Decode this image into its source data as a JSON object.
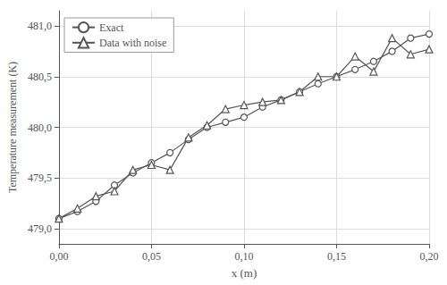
{
  "chart_data": {
    "type": "line",
    "xlabel": "x (m)",
    "ylabel": "Temperature measurement (K)",
    "x": [
      0.0,
      0.01,
      0.02,
      0.03,
      0.04,
      0.05,
      0.06,
      0.07,
      0.08,
      0.09,
      0.1,
      0.11,
      0.12,
      0.13,
      0.14,
      0.15,
      0.16,
      0.17,
      0.18,
      0.19,
      0.2
    ],
    "series": [
      {
        "name": "Exact",
        "color": "#555555",
        "marker": "circle",
        "values": [
          479.1,
          479.17,
          479.27,
          479.43,
          479.55,
          479.65,
          479.75,
          479.88,
          480.0,
          480.05,
          480.1,
          480.2,
          480.27,
          480.35,
          480.43,
          480.5,
          480.57,
          480.65,
          480.75,
          480.88,
          480.92
        ]
      },
      {
        "name": "Data with noise",
        "color": "#555555",
        "marker": "triangle",
        "values": [
          479.1,
          479.2,
          479.32,
          479.37,
          479.58,
          479.63,
          479.58,
          479.9,
          480.02,
          480.18,
          480.22,
          480.25,
          480.27,
          480.35,
          480.5,
          480.5,
          480.7,
          480.55,
          480.88,
          480.72,
          480.77
        ]
      }
    ],
    "xlim": [
      0.0,
      0.2
    ],
    "ylim": [
      478.85,
      481.15
    ],
    "xticks": [
      {
        "value": 0.0,
        "label": "0,00"
      },
      {
        "value": 0.05,
        "label": "0,05"
      },
      {
        "value": 0.1,
        "label": "0,10"
      },
      {
        "value": 0.15,
        "label": "0,15"
      },
      {
        "value": 0.2,
        "label": "0,20"
      }
    ],
    "yticks": [
      {
        "value": 479.0,
        "label": "479,0"
      },
      {
        "value": 479.5,
        "label": "479,5"
      },
      {
        "value": 480.0,
        "label": "480,0"
      },
      {
        "value": 480.5,
        "label": "480,5"
      },
      {
        "value": 481.0,
        "label": "481,0"
      }
    ],
    "grid": true,
    "legend": "upper left"
  }
}
